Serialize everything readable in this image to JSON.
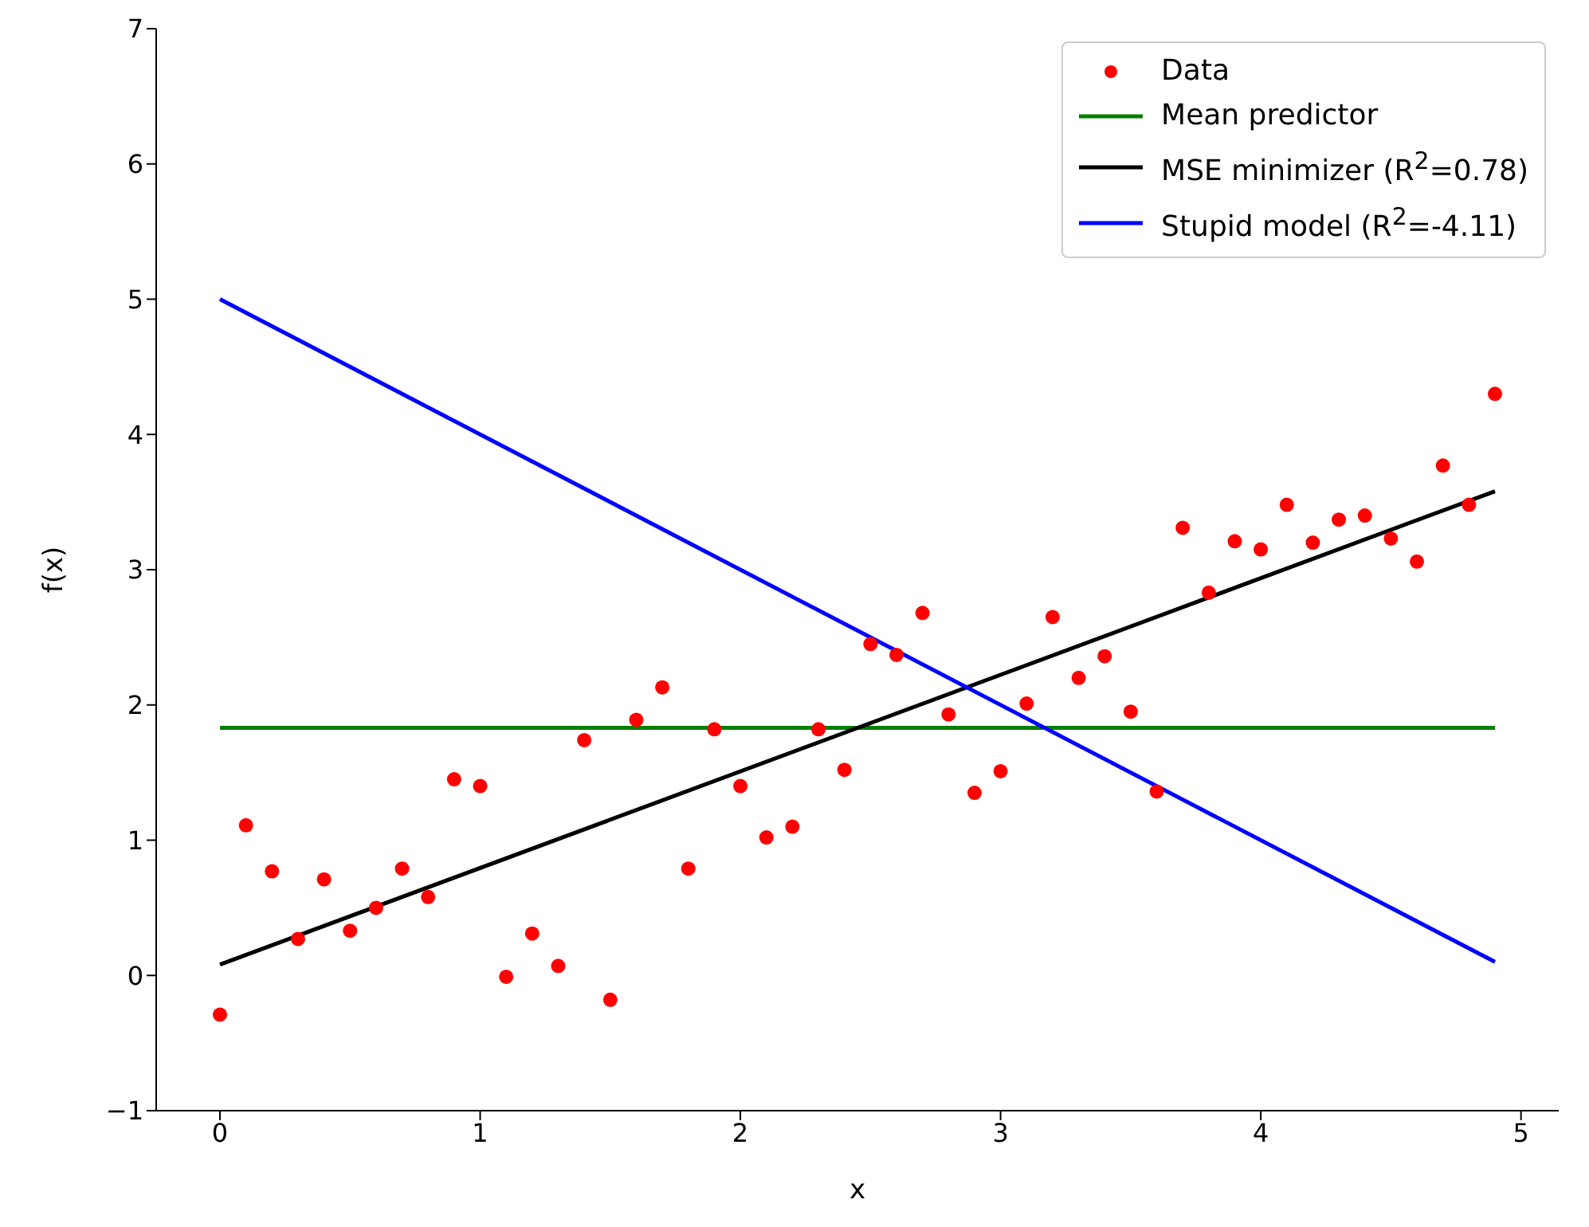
{
  "chart_data": {
    "type": "scatter",
    "xlabel": "x",
    "ylabel": "f(x)",
    "xlim": [
      -0.245,
      5.145
    ],
    "xticks": [
      0,
      1,
      2,
      3,
      4,
      5
    ],
    "ylim": [
      -1,
      7
    ],
    "yticks": [
      {
        "value": -1,
        "label": "−1"
      },
      0,
      1,
      2,
      3,
      4,
      5,
      6,
      7
    ],
    "grid": false,
    "legend": "top right",
    "series": [
      {
        "name": "Data",
        "marker": "circle",
        "color": "#ff0000",
        "x": [
          0,
          0.1,
          0.2,
          0.3,
          0.4,
          0.5,
          0.6,
          0.7,
          0.8,
          0.9,
          1.0,
          1.1,
          1.2,
          1.3,
          1.4,
          1.5,
          1.6,
          1.7,
          1.8,
          1.9,
          2.0,
          2.1,
          2.2,
          2.3,
          2.4,
          2.5,
          2.6,
          2.7,
          2.8,
          2.9,
          3.0,
          3.1,
          3.2,
          3.3,
          3.4,
          3.5,
          3.6,
          3.7,
          3.8,
          3.9,
          4.0,
          4.1,
          4.2,
          4.3,
          4.4,
          4.5,
          4.6,
          4.7,
          4.8,
          4.9
        ],
        "values": [
          -0.29,
          1.11,
          0.77,
          0.27,
          0.71,
          0.33,
          0.5,
          0.79,
          0.58,
          1.45,
          1.4,
          -0.01,
          0.31,
          0.07,
          1.74,
          -0.18,
          1.89,
          2.13,
          0.79,
          1.82,
          1.4,
          1.02,
          1.1,
          1.82,
          1.52,
          2.45,
          2.37,
          2.68,
          1.93,
          1.35,
          1.51,
          2.01,
          2.65,
          2.2,
          2.36,
          1.95,
          1.36,
          3.31,
          2.83,
          3.21,
          3.15,
          3.48,
          3.2,
          3.37,
          3.4,
          3.23,
          3.06,
          3.77,
          3.48,
          4.3
        ]
      },
      {
        "name": "Mean predictor",
        "type": "line",
        "marker": "none",
        "line_style": "solid",
        "color": "#008000",
        "x": [
          0,
          4.9
        ],
        "values": [
          1.83,
          1.83
        ]
      },
      {
        "name": "MSE minimizer (R$^{2}$=0.78)",
        "type": "line",
        "marker": "none",
        "line_style": "solid",
        "color": "#000000",
        "x": [
          0,
          4.9
        ],
        "values": [
          0.08,
          3.58
        ]
      },
      {
        "name": "Stupid model (R$^{2}$=-4.11)",
        "type": "line",
        "marker": "none",
        "line_style": "solid",
        "color": "#0000ff",
        "x": [
          0,
          4.9
        ],
        "values": [
          5,
          0.1
        ]
      }
    ]
  }
}
